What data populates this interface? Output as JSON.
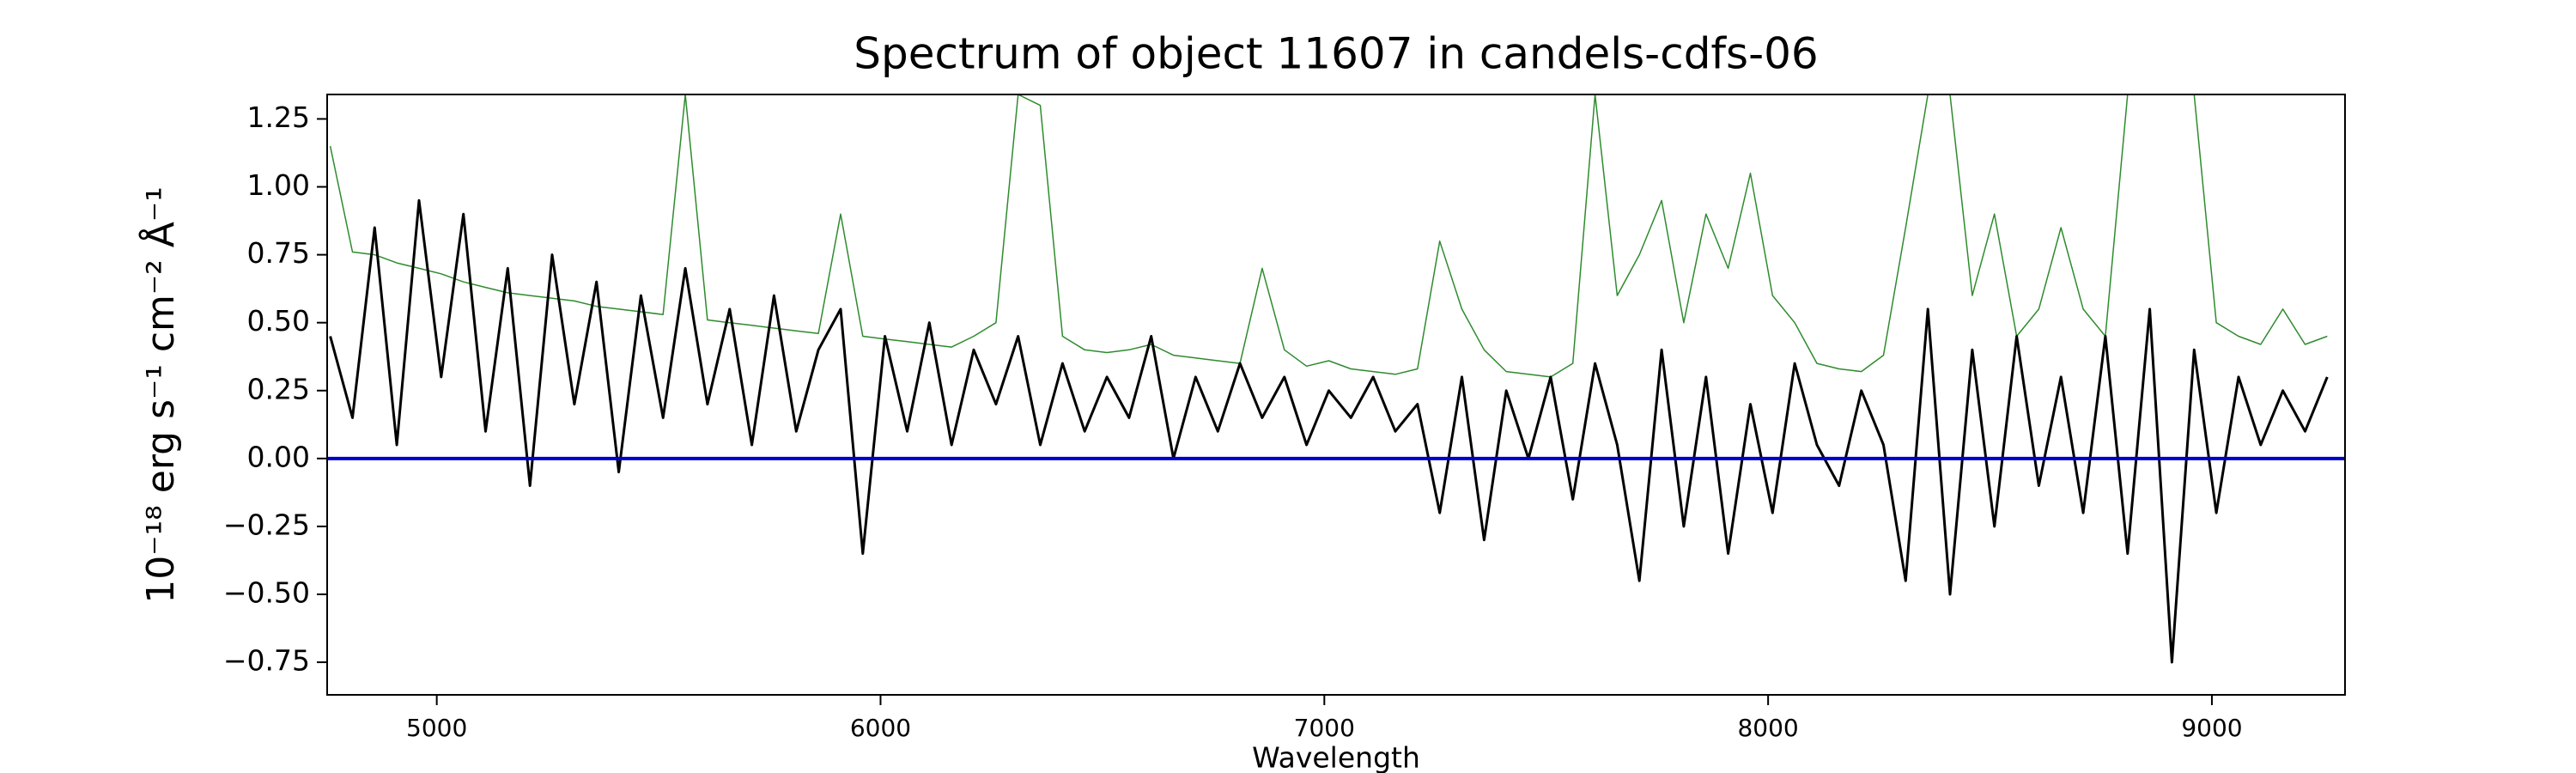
{
  "chart_data": {
    "type": "line",
    "title": "Spectrum of object 11607 in candels-cdfs-06",
    "xlabel": "Wavelength",
    "ylabel": "10⁻¹⁸ erg s⁻¹ cm⁻² Å⁻¹",
    "x": [
      4760,
      4810,
      4860,
      4910,
      4960,
      5010,
      5060,
      5110,
      5160,
      5210,
      5260,
      5310,
      5360,
      5410,
      5460,
      5510,
      5560,
      5610,
      5660,
      5710,
      5760,
      5810,
      5860,
      5910,
      5960,
      6010,
      6060,
      6110,
      6160,
      6210,
      6260,
      6310,
      6360,
      6410,
      6460,
      6510,
      6560,
      6610,
      6660,
      6710,
      6760,
      6810,
      6860,
      6910,
      6960,
      7010,
      7060,
      7110,
      7160,
      7210,
      7260,
      7310,
      7360,
      7410,
      7460,
      7510,
      7560,
      7610,
      7660,
      7710,
      7760,
      7810,
      7860,
      7910,
      7960,
      8010,
      8060,
      8110,
      8160,
      8210,
      8260,
      8310,
      8360,
      8410,
      8460,
      8510,
      8560,
      8610,
      8660,
      8710,
      8760,
      8810,
      8860,
      8910,
      8960,
      9010,
      9060,
      9110,
      9160,
      9210,
      9260
    ],
    "series": [
      {
        "color": "#2e8b2e",
        "width": 1.5,
        "values": [
          1.15,
          0.76,
          0.75,
          0.72,
          0.7,
          0.68,
          0.65,
          0.63,
          0.61,
          0.6,
          0.59,
          0.58,
          0.56,
          0.55,
          0.54,
          0.53,
          1.34,
          0.51,
          0.5,
          0.49,
          0.48,
          0.47,
          0.46,
          0.9,
          0.45,
          0.44,
          0.43,
          0.42,
          0.41,
          0.45,
          0.5,
          1.34,
          1.3,
          0.45,
          0.4,
          0.39,
          0.4,
          0.42,
          0.38,
          0.37,
          0.36,
          0.35,
          0.7,
          0.4,
          0.34,
          0.36,
          0.33,
          0.32,
          0.31,
          0.33,
          0.8,
          0.55,
          0.4,
          0.32,
          0.31,
          0.3,
          0.35,
          1.34,
          0.6,
          0.75,
          0.95,
          0.5,
          0.9,
          0.7,
          1.05,
          0.6,
          0.5,
          0.35,
          0.33,
          0.32,
          0.38,
          0.85,
          1.34,
          1.34,
          0.6,
          0.9,
          0.45,
          0.55,
          0.85,
          0.55,
          0.45,
          1.34,
          1.34,
          1.34,
          1.34,
          0.5,
          0.45,
          0.42,
          0.55,
          0.42,
          0.45
        ]
      },
      {
        "color": "#000000",
        "width": 3,
        "values": [
          0.45,
          0.15,
          0.85,
          0.05,
          0.95,
          0.3,
          0.9,
          0.1,
          0.7,
          -0.1,
          0.75,
          0.2,
          0.65,
          -0.05,
          0.6,
          0.15,
          0.7,
          0.2,
          0.55,
          0.05,
          0.6,
          0.1,
          0.4,
          0.55,
          -0.35,
          0.45,
          0.1,
          0.5,
          0.05,
          0.4,
          0.2,
          0.45,
          0.05,
          0.35,
          0.1,
          0.3,
          0.15,
          0.45,
          0.0,
          0.3,
          0.1,
          0.35,
          0.15,
          0.3,
          0.05,
          0.25,
          0.15,
          0.3,
          0.1,
          0.2,
          -0.2,
          0.3,
          -0.3,
          0.25,
          0.0,
          0.3,
          -0.15,
          0.35,
          0.05,
          -0.45,
          0.4,
          -0.25,
          0.3,
          -0.35,
          0.2,
          -0.2,
          0.35,
          0.05,
          -0.1,
          0.25,
          0.05,
          -0.45,
          0.55,
          -0.5,
          0.4,
          -0.25,
          0.45,
          -0.1,
          0.3,
          -0.2,
          0.45,
          -0.35,
          0.55,
          -0.75,
          0.4,
          -0.2,
          0.3,
          0.05,
          0.25,
          0.1,
          0.3
        ]
      }
    ],
    "hlines": [
      {
        "y": 0,
        "color": "#0000cc"
      }
    ],
    "xlim": [
      4753,
      9300
    ],
    "ylim": [
      -0.87,
      1.34
    ],
    "xticks": [
      5000,
      6000,
      7000,
      8000,
      9000
    ],
    "yticks": [
      {
        "value": -0.75,
        "label": "−0.75"
      },
      {
        "value": -0.5,
        "label": "−0.50"
      },
      {
        "value": -0.25,
        "label": "−0.25"
      },
      {
        "value": 0,
        "label": "0.00"
      },
      {
        "value": 0.25,
        "label": "0.25"
      },
      {
        "value": 0.5,
        "label": "0.50"
      },
      {
        "value": 0.75,
        "label": "0.75"
      },
      {
        "value": 1,
        "label": "1.00"
      },
      {
        "value": 1.25,
        "label": "1.25"
      }
    ],
    "grid": false
  }
}
